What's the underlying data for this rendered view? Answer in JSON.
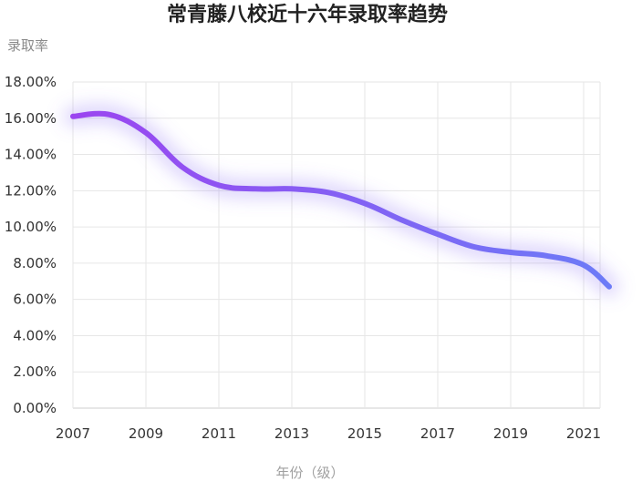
{
  "chart_data": {
    "type": "line",
    "title": "常青藤八校近十六年录取率趋势",
    "ylabel": "录取率",
    "xlabel": "年份（级）",
    "x_ticks": [
      "2007",
      "2009",
      "2011",
      "2013",
      "2015",
      "2017",
      "2019",
      "2021"
    ],
    "y_ticks": [
      "0.00%",
      "2.00%",
      "4.00%",
      "6.00%",
      "8.00%",
      "10.00%",
      "12.00%",
      "14.00%",
      "16.00%",
      "18.00%"
    ],
    "ylim": [
      0,
      18
    ],
    "xlim": [
      2007,
      2022
    ],
    "grid": true,
    "series": [
      {
        "x": [
          2007,
          2008,
          2009,
          2010,
          2011,
          2012,
          2013,
          2014,
          2015,
          2016,
          2017,
          2018,
          2019,
          2020,
          2021,
          2021.7
        ],
        "values": [
          16.1,
          16.2,
          15.2,
          13.3,
          12.3,
          12.1,
          12.1,
          11.9,
          11.3,
          10.4,
          9.6,
          8.9,
          8.6,
          8.4,
          7.9,
          6.7
        ],
        "color_start": "#9b45f0",
        "color_end": "#6c7bf7"
      }
    ]
  }
}
